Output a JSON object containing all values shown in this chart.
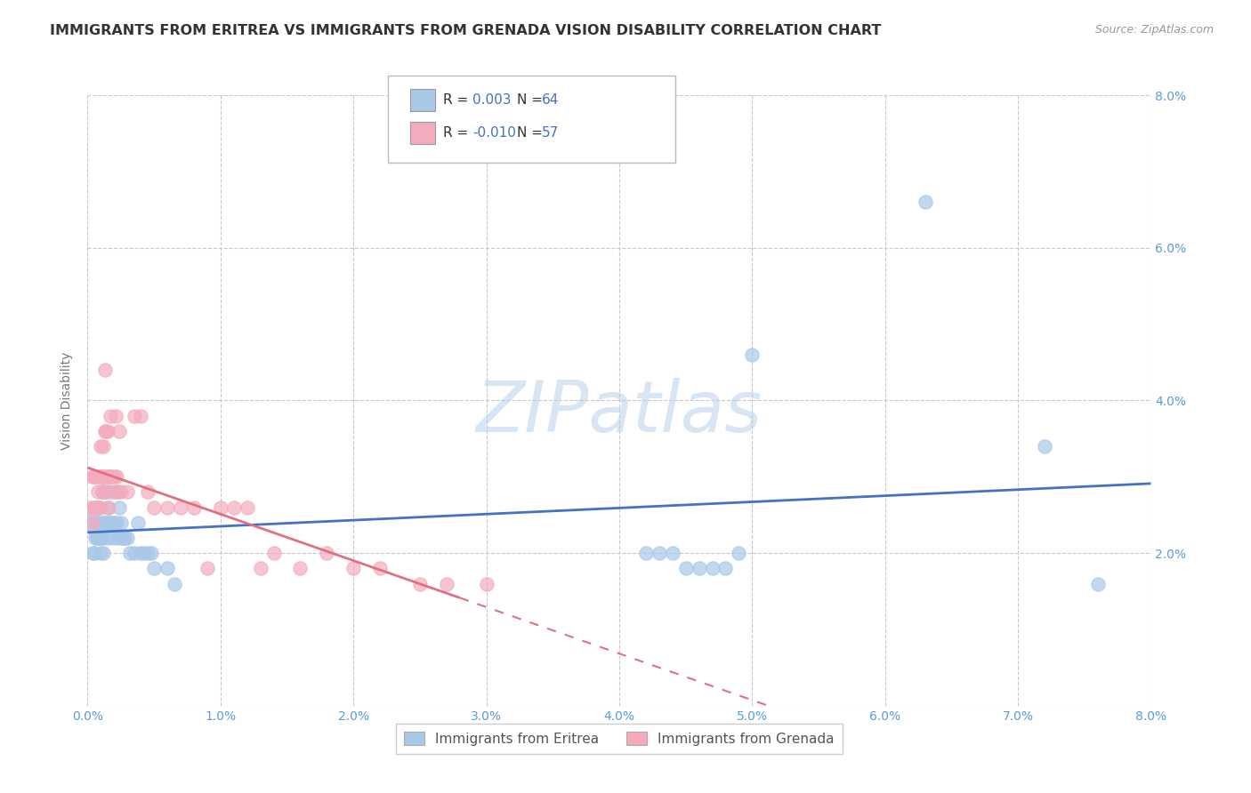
{
  "title": "IMMIGRANTS FROM ERITREA VS IMMIGRANTS FROM GRENADA VISION DISABILITY CORRELATION CHART",
  "source": "Source: ZipAtlas.com",
  "ylabel": "Vision Disability",
  "xlim": [
    0.0,
    0.08
  ],
  "ylim": [
    0.0,
    0.08
  ],
  "xticks": [
    0.0,
    0.01,
    0.02,
    0.03,
    0.04,
    0.05,
    0.06,
    0.07,
    0.08
  ],
  "yticks": [
    0.0,
    0.02,
    0.04,
    0.06,
    0.08
  ],
  "xticklabels": [
    "0.0%",
    "1.0%",
    "2.0%",
    "3.0%",
    "4.0%",
    "5.0%",
    "6.0%",
    "7.0%",
    "8.0%"
  ],
  "yticklabels_left": [
    "",
    "",
    "",
    "",
    ""
  ],
  "yticklabels_right": [
    "",
    "2.0%",
    "4.0%",
    "6.0%",
    "8.0%"
  ],
  "series1_label": "Immigrants from Eritrea",
  "series1_color": "#A8C8E8",
  "series1_R": "0.003",
  "series1_N": "64",
  "series2_label": "Immigrants from Grenada",
  "series2_color": "#F4ABBE",
  "series2_R": "-0.010",
  "series2_N": "57",
  "trend1_color": "#4472C4",
  "trend2_color": "#E07080",
  "watermark": "ZIPatlas",
  "background_color": "#FFFFFF",
  "grid_color": "#C8C8D0",
  "tick_color": "#5B9BD5",
  "series1_x": [
    0.0002,
    0.0003,
    0.0004,
    0.0005,
    0.0005,
    0.0006,
    0.0006,
    0.0007,
    0.0007,
    0.0008,
    0.0008,
    0.0009,
    0.0009,
    0.001,
    0.001,
    0.001,
    0.0011,
    0.0011,
    0.0012,
    0.0012,
    0.0013,
    0.0013,
    0.0014,
    0.0014,
    0.0015,
    0.0015,
    0.0016,
    0.0016,
    0.0017,
    0.0017,
    0.0018,
    0.0019,
    0.002,
    0.0021,
    0.0022,
    0.0023,
    0.0024,
    0.0025,
    0.0026,
    0.0027,
    0.0028,
    0.003,
    0.0032,
    0.0035,
    0.0038,
    0.004,
    0.0042,
    0.0045,
    0.0048,
    0.005,
    0.006,
    0.0065,
    0.042,
    0.043,
    0.044,
    0.045,
    0.046,
    0.047,
    0.048,
    0.049,
    0.05,
    0.063,
    0.072,
    0.076
  ],
  "series1_y": [
    0.024,
    0.025,
    0.02,
    0.02,
    0.023,
    0.022,
    0.026,
    0.022,
    0.024,
    0.022,
    0.024,
    0.026,
    0.022,
    0.022,
    0.024,
    0.02,
    0.022,
    0.028,
    0.024,
    0.02,
    0.024,
    0.028,
    0.024,
    0.03,
    0.026,
    0.022,
    0.024,
    0.028,
    0.024,
    0.03,
    0.024,
    0.022,
    0.024,
    0.028,
    0.024,
    0.022,
    0.026,
    0.024,
    0.022,
    0.022,
    0.022,
    0.022,
    0.02,
    0.02,
    0.024,
    0.02,
    0.02,
    0.02,
    0.02,
    0.018,
    0.018,
    0.016,
    0.02,
    0.02,
    0.02,
    0.018,
    0.018,
    0.018,
    0.018,
    0.02,
    0.046,
    0.066,
    0.034,
    0.016
  ],
  "series2_x": [
    0.0002,
    0.0003,
    0.0004,
    0.0005,
    0.0005,
    0.0006,
    0.0006,
    0.0007,
    0.0007,
    0.0008,
    0.0008,
    0.0009,
    0.0009,
    0.001,
    0.001,
    0.0011,
    0.0011,
    0.0012,
    0.0012,
    0.0013,
    0.0013,
    0.0014,
    0.0014,
    0.0015,
    0.0015,
    0.0016,
    0.0016,
    0.0017,
    0.0018,
    0.0019,
    0.002,
    0.0021,
    0.0022,
    0.0023,
    0.0024,
    0.0025,
    0.003,
    0.0035,
    0.004,
    0.0045,
    0.005,
    0.006,
    0.007,
    0.008,
    0.009,
    0.01,
    0.011,
    0.012,
    0.013,
    0.014,
    0.016,
    0.018,
    0.02,
    0.022,
    0.025,
    0.027,
    0.03
  ],
  "series2_y": [
    0.026,
    0.03,
    0.024,
    0.026,
    0.03,
    0.026,
    0.03,
    0.026,
    0.03,
    0.026,
    0.028,
    0.03,
    0.026,
    0.03,
    0.034,
    0.03,
    0.028,
    0.03,
    0.034,
    0.036,
    0.044,
    0.036,
    0.028,
    0.03,
    0.036,
    0.03,
    0.026,
    0.038,
    0.03,
    0.028,
    0.03,
    0.038,
    0.03,
    0.028,
    0.036,
    0.028,
    0.028,
    0.038,
    0.038,
    0.028,
    0.026,
    0.026,
    0.026,
    0.026,
    0.018,
    0.026,
    0.026,
    0.026,
    0.018,
    0.02,
    0.018,
    0.02,
    0.018,
    0.018,
    0.016,
    0.016,
    0.016
  ]
}
